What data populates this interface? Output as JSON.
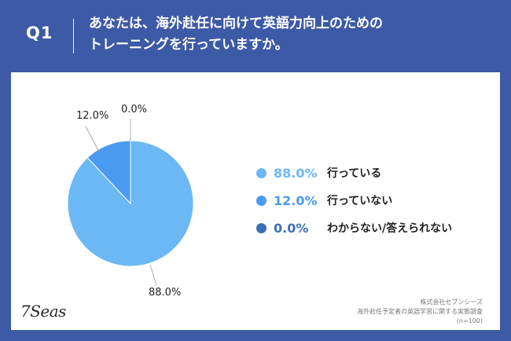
{
  "header": {
    "q_label": "Q1",
    "question_line1": "あなたは、海外赴任に向けて英語力向上のための",
    "question_line2": "トレーニングを行っていますか。"
  },
  "chart_data": {
    "type": "pie",
    "slices": [
      {
        "label": "行っている",
        "value": 88.0,
        "value_text": "88.0%",
        "color": "#6cb8f5"
      },
      {
        "label": "行っていない",
        "value": 12.0,
        "value_text": "12.0%",
        "color": "#4a9af2"
      },
      {
        "label": "わからない/答えられない",
        "value": 0.0,
        "value_text": "0.0%",
        "color": "#3b6fb5"
      }
    ],
    "legend_position": "right"
  },
  "footer": {
    "company": "株式会社セブンシーズ",
    "survey": "海外赴任予定者の英語学習に関する実態調査",
    "sample": "(n=100)"
  },
  "logo": "7Seas"
}
